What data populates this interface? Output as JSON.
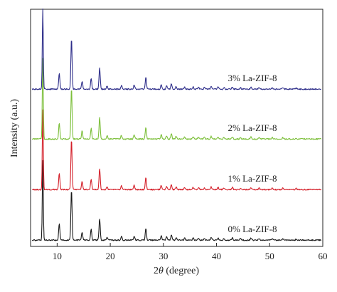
{
  "chart_data": {
    "type": "line",
    "xlabel_prefix": "2",
    "xlabel_symbol": "θ",
    "xlabel_suffix": " (degree)",
    "ylabel": "Intensity (a.u.)",
    "xlim": [
      5,
      60
    ],
    "xticks": [
      10,
      20,
      30,
      40,
      50,
      60
    ],
    "grid": false,
    "y_tick_labels": false,
    "peaks_2theta": [
      7.3,
      10.4,
      12.7,
      14.7,
      16.4,
      18.0,
      19.4,
      22.1,
      24.5,
      26.7,
      29.6,
      30.6,
      31.5,
      32.4,
      34.0,
      35.6,
      36.6,
      37.7,
      39.0,
      40.3,
      41.4,
      43.0,
      44.5,
      46.5,
      48.0,
      50.5,
      52.5,
      55.0
    ],
    "series": [
      {
        "name": "0% La-ZIF-8",
        "color": "#1a1a1a",
        "baseline_offset": 0,
        "peak_heights": [
          150,
          30,
          95,
          15,
          20,
          40,
          6,
          7,
          8,
          22,
          8,
          6,
          10,
          5,
          4,
          4,
          4,
          3,
          5,
          4,
          3,
          4,
          3,
          4,
          3,
          3,
          3,
          2
        ]
      },
      {
        "name": "1% La-ZIF-8",
        "color": "#d4202a",
        "baseline_offset": 1,
        "peak_heights": [
          150,
          30,
          95,
          15,
          20,
          40,
          6,
          7,
          8,
          22,
          8,
          6,
          10,
          5,
          4,
          4,
          4,
          3,
          5,
          4,
          3,
          4,
          3,
          4,
          3,
          3,
          3,
          2
        ]
      },
      {
        "name": "2% La-ZIF-8",
        "color": "#7cbf3a",
        "baseline_offset": 2,
        "peak_heights": [
          150,
          30,
          95,
          15,
          20,
          40,
          6,
          7,
          8,
          22,
          8,
          6,
          10,
          5,
          4,
          4,
          4,
          3,
          5,
          4,
          3,
          4,
          3,
          4,
          3,
          3,
          3,
          2
        ]
      },
      {
        "name": "3% La-ZIF-8",
        "color": "#2e2e8a",
        "baseline_offset": 3,
        "peak_heights": [
          150,
          30,
          95,
          15,
          20,
          40,
          6,
          7,
          8,
          22,
          8,
          6,
          10,
          5,
          4,
          4,
          4,
          3,
          5,
          4,
          3,
          4,
          3,
          4,
          3,
          3,
          3,
          2
        ]
      }
    ]
  }
}
